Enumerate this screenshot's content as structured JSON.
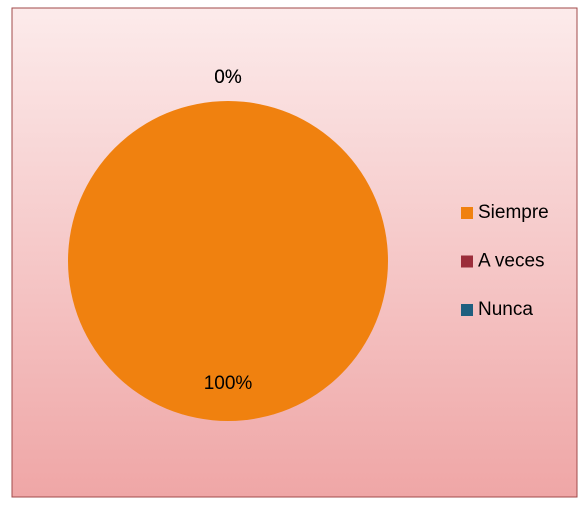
{
  "chart_data": {
    "type": "pie",
    "categories": [
      "Siempre",
      "A veces",
      "Nunca"
    ],
    "values": [
      100,
      0,
      0
    ],
    "value_labels": [
      "100%",
      "0%",
      "0%"
    ],
    "colors": [
      "#f0810f",
      "#9b2d3a",
      "#1f5f7f"
    ],
    "legend": "right"
  }
}
